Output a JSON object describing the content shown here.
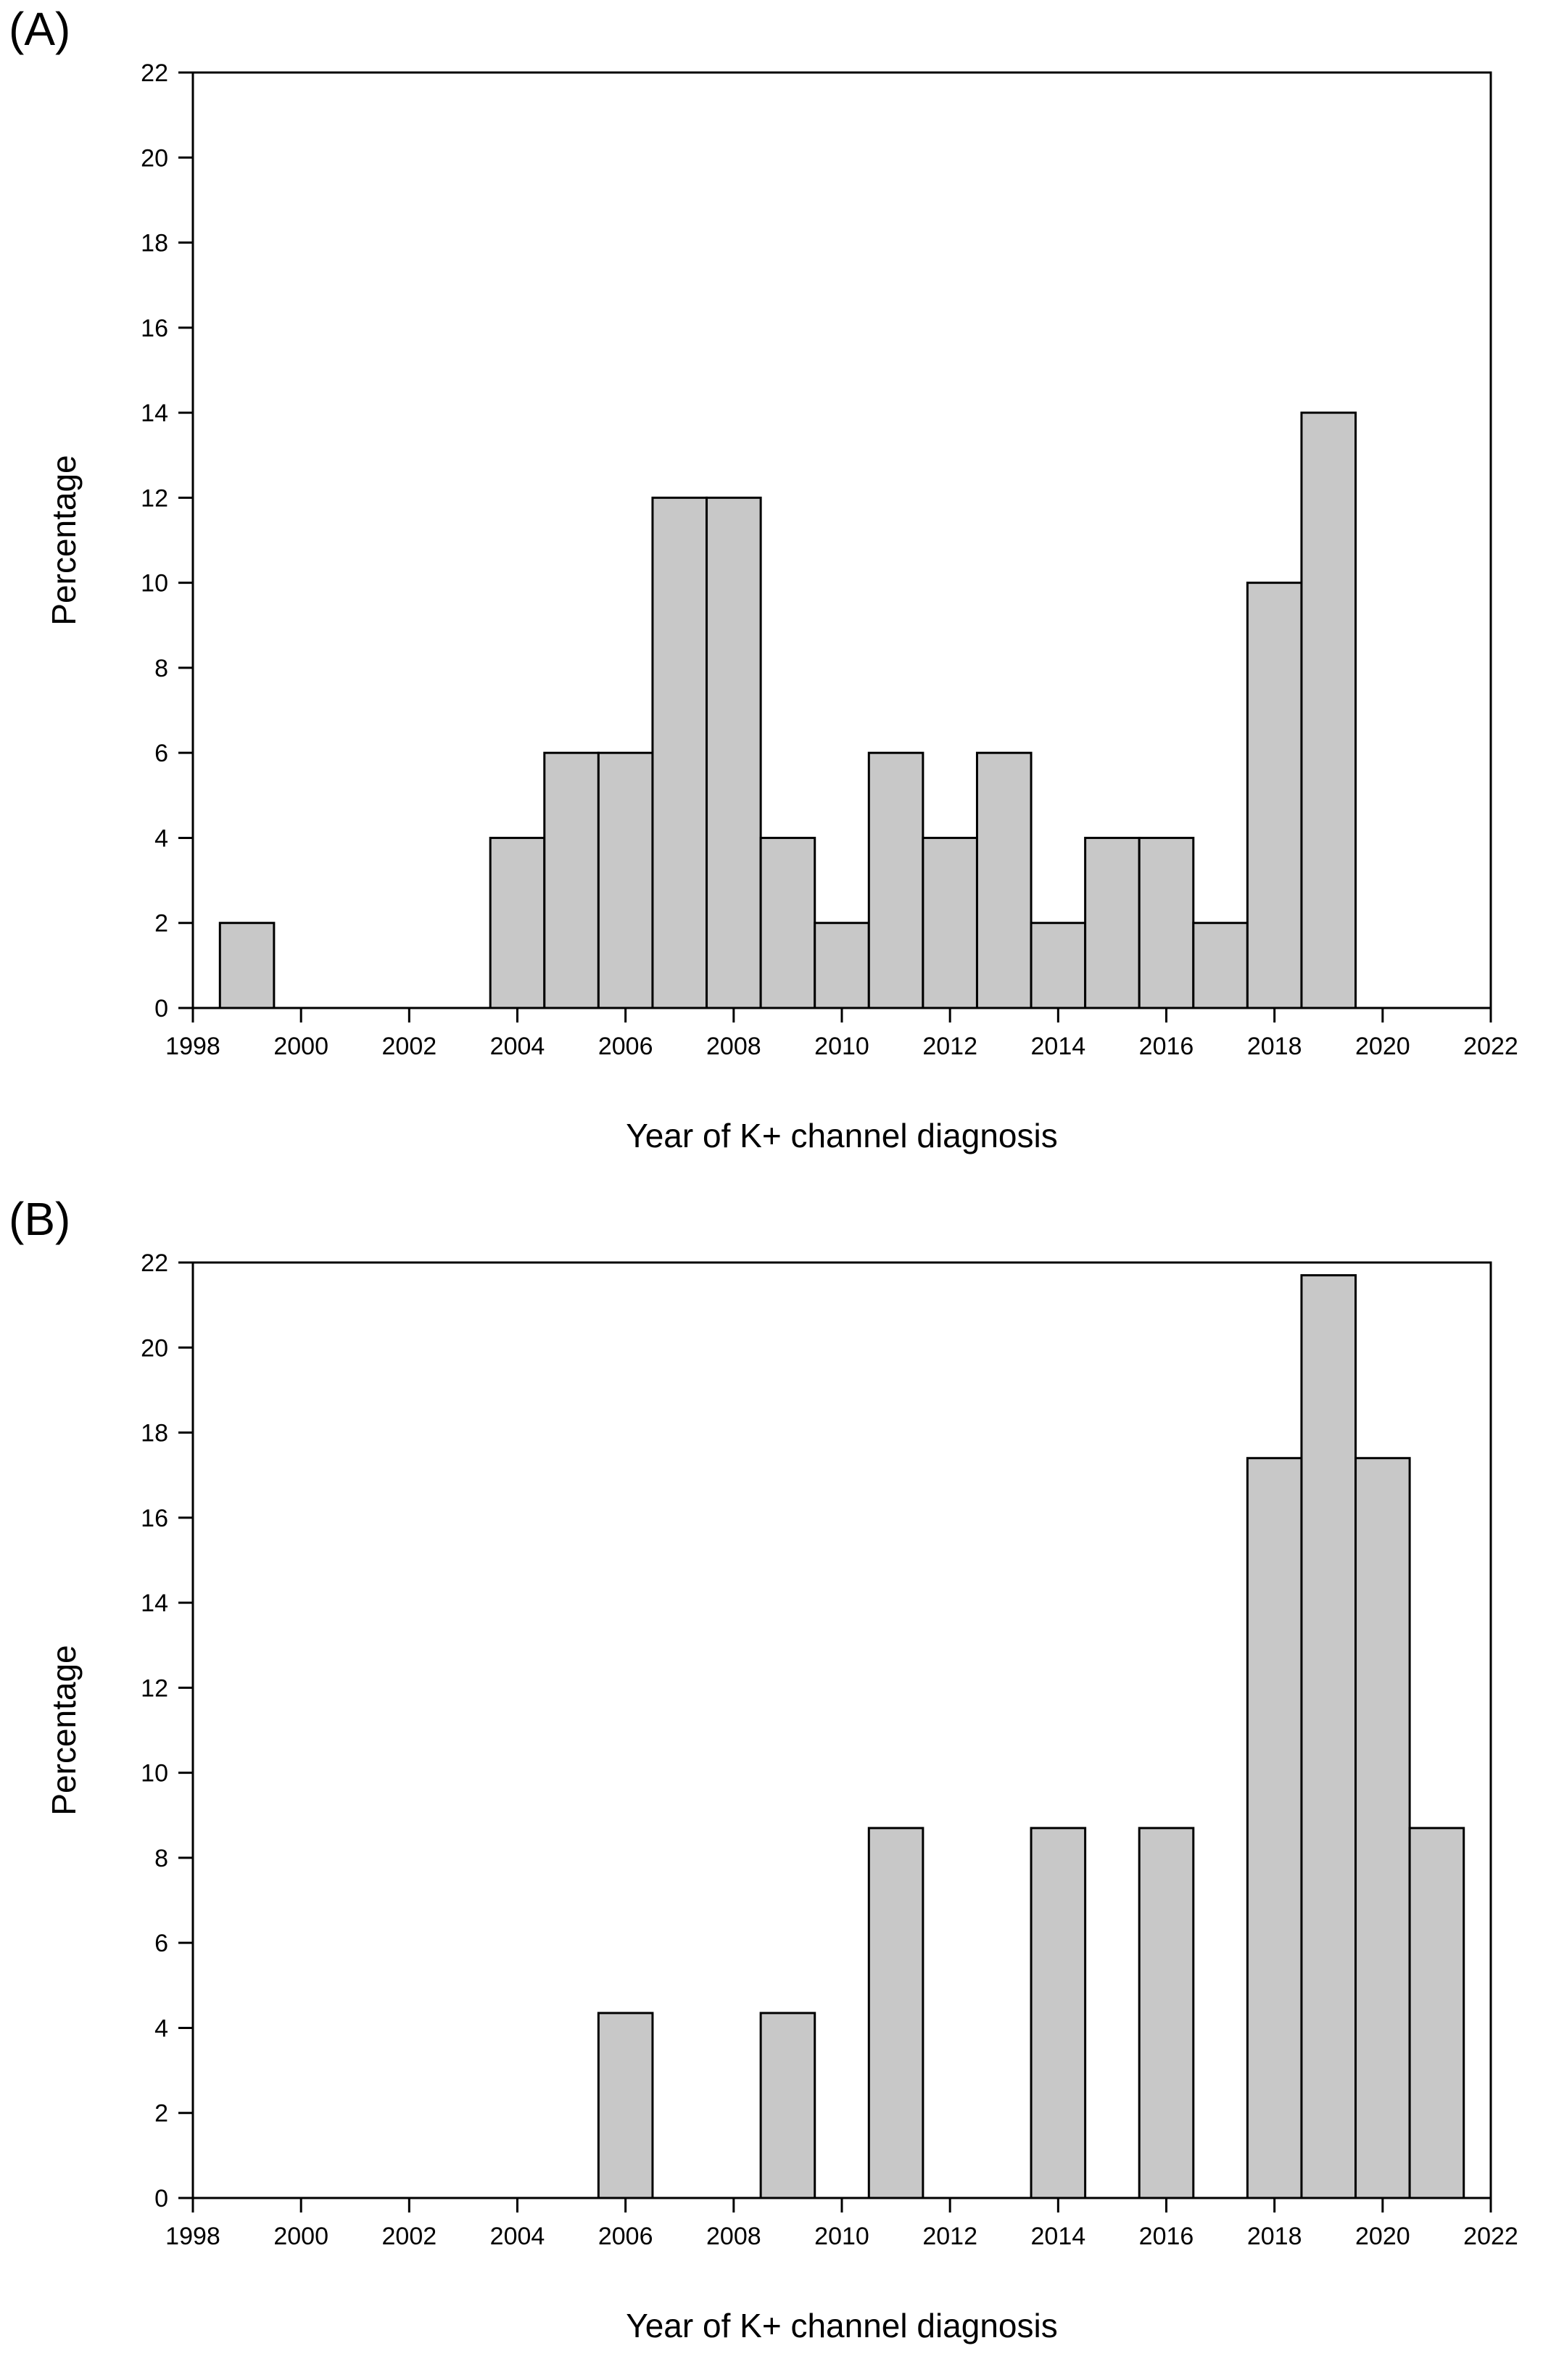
{
  "chart_data": [
    {
      "type": "bar",
      "panel_label": "(A)",
      "xlabel": "Year of K+ channel diagnosis",
      "ylabel": "Percentage",
      "xlim": [
        1998,
        2022
      ],
      "ylim": [
        0,
        22
      ],
      "xticks": [
        1998,
        2000,
        2002,
        2004,
        2006,
        2008,
        2010,
        2012,
        2014,
        2016,
        2018,
        2020,
        2022
      ],
      "yticks": [
        0,
        2,
        4,
        6,
        8,
        10,
        12,
        14,
        16,
        18,
        20,
        22
      ],
      "grid": false,
      "bar_color": "#c8c8c8",
      "x": [
        1999,
        2004,
        2005,
        2006,
        2007,
        2008,
        2009,
        2010,
        2011,
        2012,
        2013,
        2014,
        2015,
        2016,
        2017,
        2018,
        2019
      ],
      "values": [
        2,
        4,
        6,
        6,
        12,
        12,
        4,
        2,
        6,
        4,
        6,
        2,
        4,
        4,
        2,
        10,
        14
      ]
    },
    {
      "type": "bar",
      "panel_label": "(B)",
      "xlabel": "Year of K+ channel diagnosis",
      "ylabel": "Percentage",
      "xlim": [
        1998,
        2022
      ],
      "ylim": [
        0,
        22
      ],
      "xticks": [
        1998,
        2000,
        2002,
        2004,
        2006,
        2008,
        2010,
        2012,
        2014,
        2016,
        2018,
        2020,
        2022
      ],
      "yticks": [
        0,
        2,
        4,
        6,
        8,
        10,
        12,
        14,
        16,
        18,
        20,
        22
      ],
      "grid": false,
      "bar_color": "#c8c8c8",
      "x": [
        2006,
        2009,
        2011,
        2014,
        2016,
        2018,
        2019,
        2020,
        2021
      ],
      "values": [
        4.35,
        4.35,
        8.7,
        8.7,
        8.7,
        17.4,
        21.7,
        17.4,
        8.7
      ]
    }
  ]
}
